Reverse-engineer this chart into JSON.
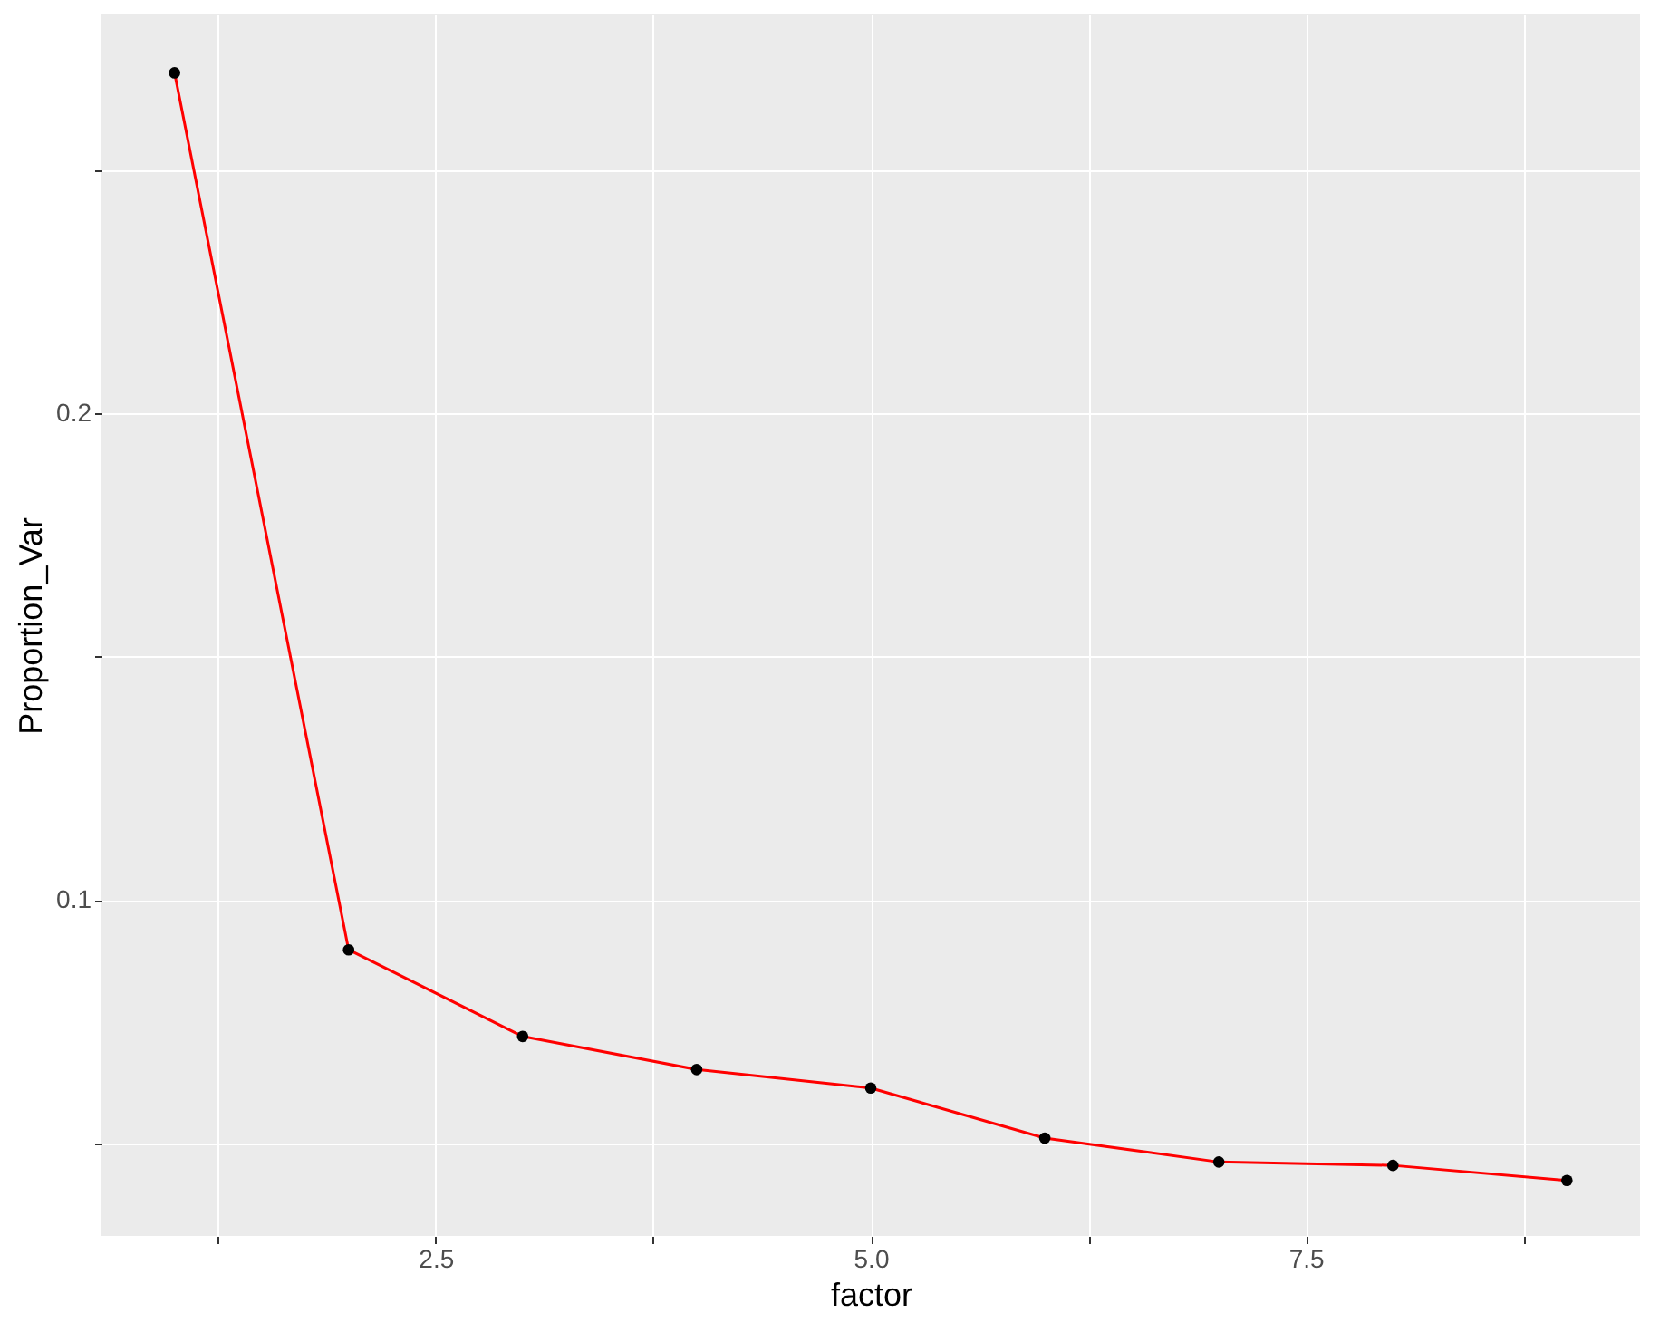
{
  "chart_data": {
    "type": "line",
    "xlabel": "factor",
    "ylabel": "Proportion_Var",
    "x": [
      1,
      2,
      3,
      4,
      5,
      6,
      7,
      8,
      9
    ],
    "series": [
      {
        "color": "#ff0000",
        "values": [
          0.27,
          0.0898,
          0.072,
          0.0652,
          0.0614,
          0.0511,
          0.0462,
          0.0455,
          0.0424
        ]
      }
    ],
    "xlim": [
      0.58,
      9.42
    ],
    "ylim": [
      0.031,
      0.282
    ],
    "xticks": [
      {
        "value": 1.25,
        "label": null
      },
      2.5,
      {
        "value": 3.75,
        "label": null
      },
      {
        "value": 5,
        "label": "5.0"
      },
      {
        "value": 6.25,
        "label": null
      },
      7.5,
      {
        "value": 8.75,
        "label": null
      }
    ],
    "yticks": [
      {
        "value": 0.05,
        "label": null
      },
      0.1,
      {
        "value": 0.15,
        "label": null
      },
      0.2,
      {
        "value": 0.25,
        "label": null
      }
    ],
    "grid": true,
    "marker": "circle"
  }
}
